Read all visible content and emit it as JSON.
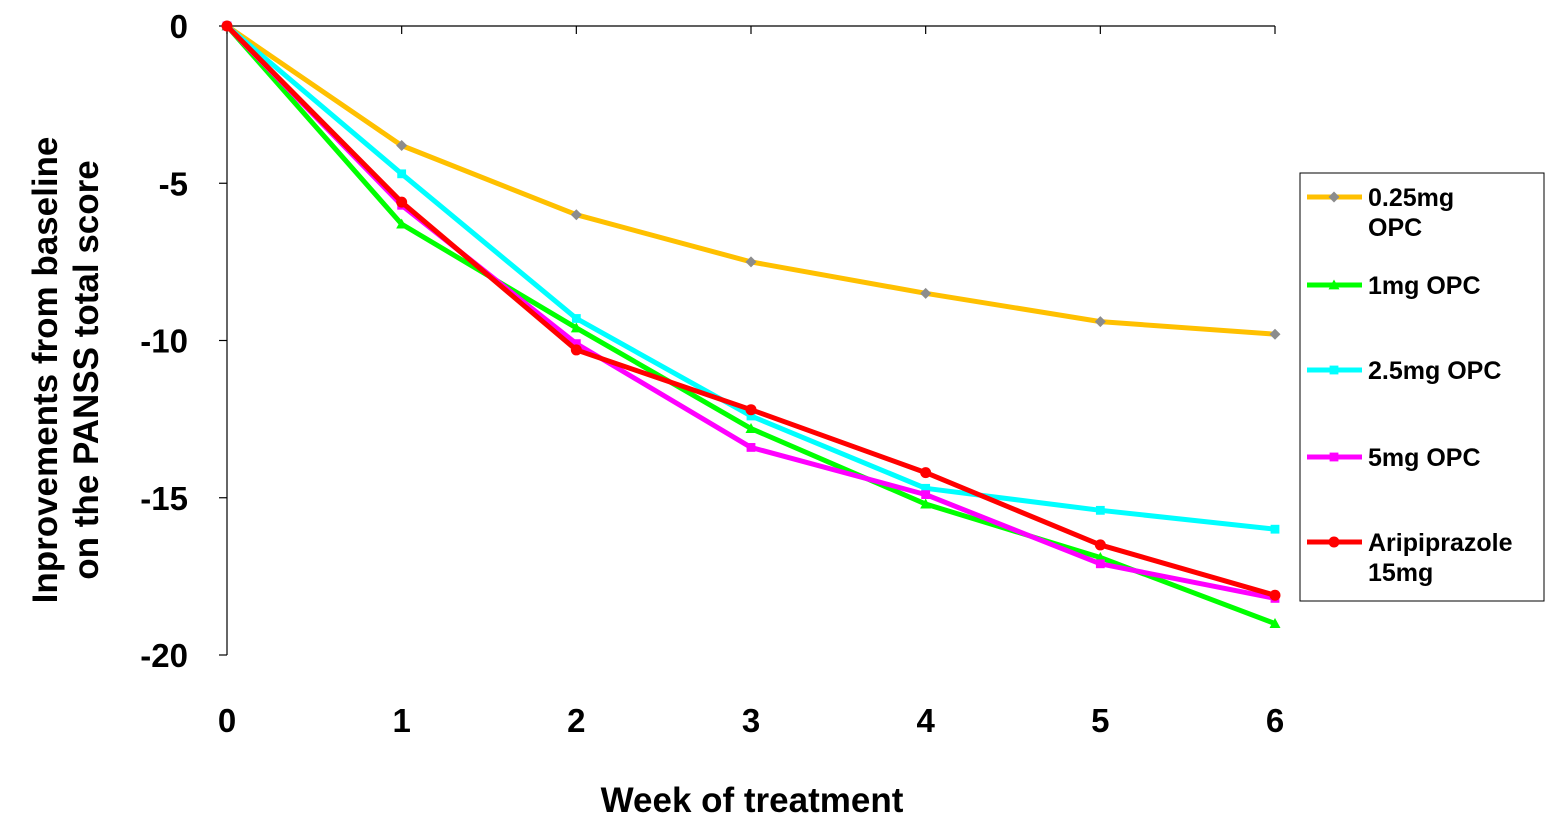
{
  "chart_data": {
    "type": "line",
    "title": "",
    "xlabel": "Week of treatment",
    "ylabel_lines": [
      "Inprovements from baseline",
      "on the PANSS total score"
    ],
    "x": [
      0,
      1,
      2,
      3,
      4,
      5,
      6
    ],
    "x_tick_labels": [
      "0",
      "1",
      "2",
      "3",
      "4",
      "5",
      "6"
    ],
    "y_ticks": [
      0,
      -5,
      -10,
      -15,
      -20
    ],
    "y_tick_labels": [
      "0",
      "-5",
      "-10",
      "-15",
      "-20"
    ],
    "xlim": [
      0,
      6
    ],
    "ylim": [
      -20,
      0
    ],
    "grid": false,
    "legend_position": "right",
    "series": [
      {
        "name_lines": [
          "0.25mg",
          "OPC"
        ],
        "color": "#FFC000",
        "marker_color": "#8C8C8C",
        "marker": "diamond",
        "values": [
          0,
          -3.8,
          -6.0,
          -7.5,
          -8.5,
          -9.4,
          -9.8
        ]
      },
      {
        "name_lines": [
          "1mg OPC"
        ],
        "color": "#00FF00",
        "marker_color": "#00FF00",
        "marker": "triangle",
        "values": [
          0,
          -6.3,
          -9.6,
          -12.8,
          -15.2,
          -16.9,
          -19.0
        ]
      },
      {
        "name_lines": [
          "2.5mg OPC"
        ],
        "color": "#00FFFF",
        "marker_color": "#00FFFF",
        "marker": "square",
        "values": [
          0,
          -4.7,
          -9.3,
          -12.4,
          -14.7,
          -15.4,
          -16.0
        ]
      },
      {
        "name_lines": [
          "5mg OPC"
        ],
        "color": "#FF00FF",
        "marker_color": "#FF00FF",
        "marker": "square",
        "values": [
          0,
          -5.7,
          -10.1,
          -13.4,
          -14.9,
          -17.1,
          -18.2
        ]
      },
      {
        "name_lines": [
          "Aripiprazole",
          "15mg"
        ],
        "color": "#FF0000",
        "marker_color": "#FF0000",
        "marker": "circle",
        "values": [
          0,
          -5.6,
          -10.3,
          -12.2,
          -14.2,
          -16.5,
          -18.1
        ]
      }
    ]
  }
}
